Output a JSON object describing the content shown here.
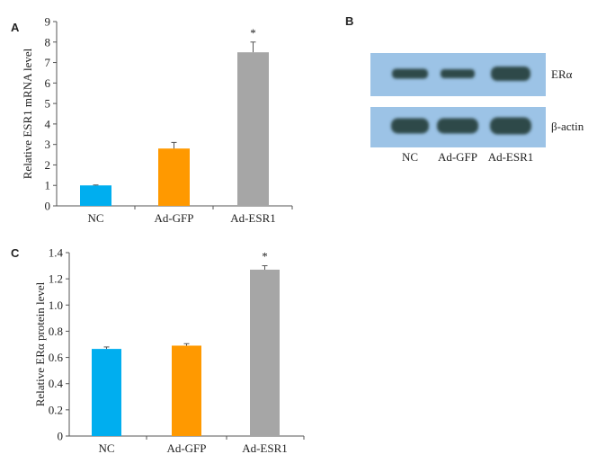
{
  "chart_data": [
    {
      "panel": "A",
      "type": "bar",
      "ylabel": "Relative ESR1 mRNA level",
      "categories": [
        "NC",
        "Ad-GFP",
        "Ad-ESR1"
      ],
      "values": [
        1.0,
        2.8,
        7.5
      ],
      "errors": [
        0.02,
        0.3,
        0.5
      ],
      "significance": [
        "",
        "",
        "*"
      ],
      "colors": [
        "#00aeef",
        "#ff9900",
        "#a6a6a6"
      ],
      "ylim": [
        0,
        9
      ],
      "yticks": [
        "0",
        "1",
        "2",
        "3",
        "4",
        "5",
        "6",
        "7",
        "8",
        "9"
      ],
      "grid": false
    },
    {
      "panel": "C",
      "type": "bar",
      "ylabel": "Relative ERα protein level",
      "categories": [
        "NC",
        "Ad-GFP",
        "Ad-ESR1"
      ],
      "values": [
        0.665,
        0.69,
        1.27
      ],
      "errors": [
        0.015,
        0.015,
        0.03
      ],
      "significance": [
        "",
        "",
        "*"
      ],
      "colors": [
        "#00aeef",
        "#ff9900",
        "#a6a6a6"
      ],
      "ylim": [
        0,
        1.4
      ],
      "yticks": [
        "0",
        "0.2",
        "0.4",
        "0.6",
        "0.8",
        "1.0",
        "1.2",
        "1.4"
      ],
      "grid": false
    }
  ],
  "blot": {
    "panel": "B",
    "rows": [
      "ERα",
      "β-actin"
    ],
    "lanes": [
      "NC",
      "Ad-GFP",
      "Ad-ESR1"
    ],
    "background_color": "#9cc3e6",
    "band_color": "#2f4a48"
  }
}
